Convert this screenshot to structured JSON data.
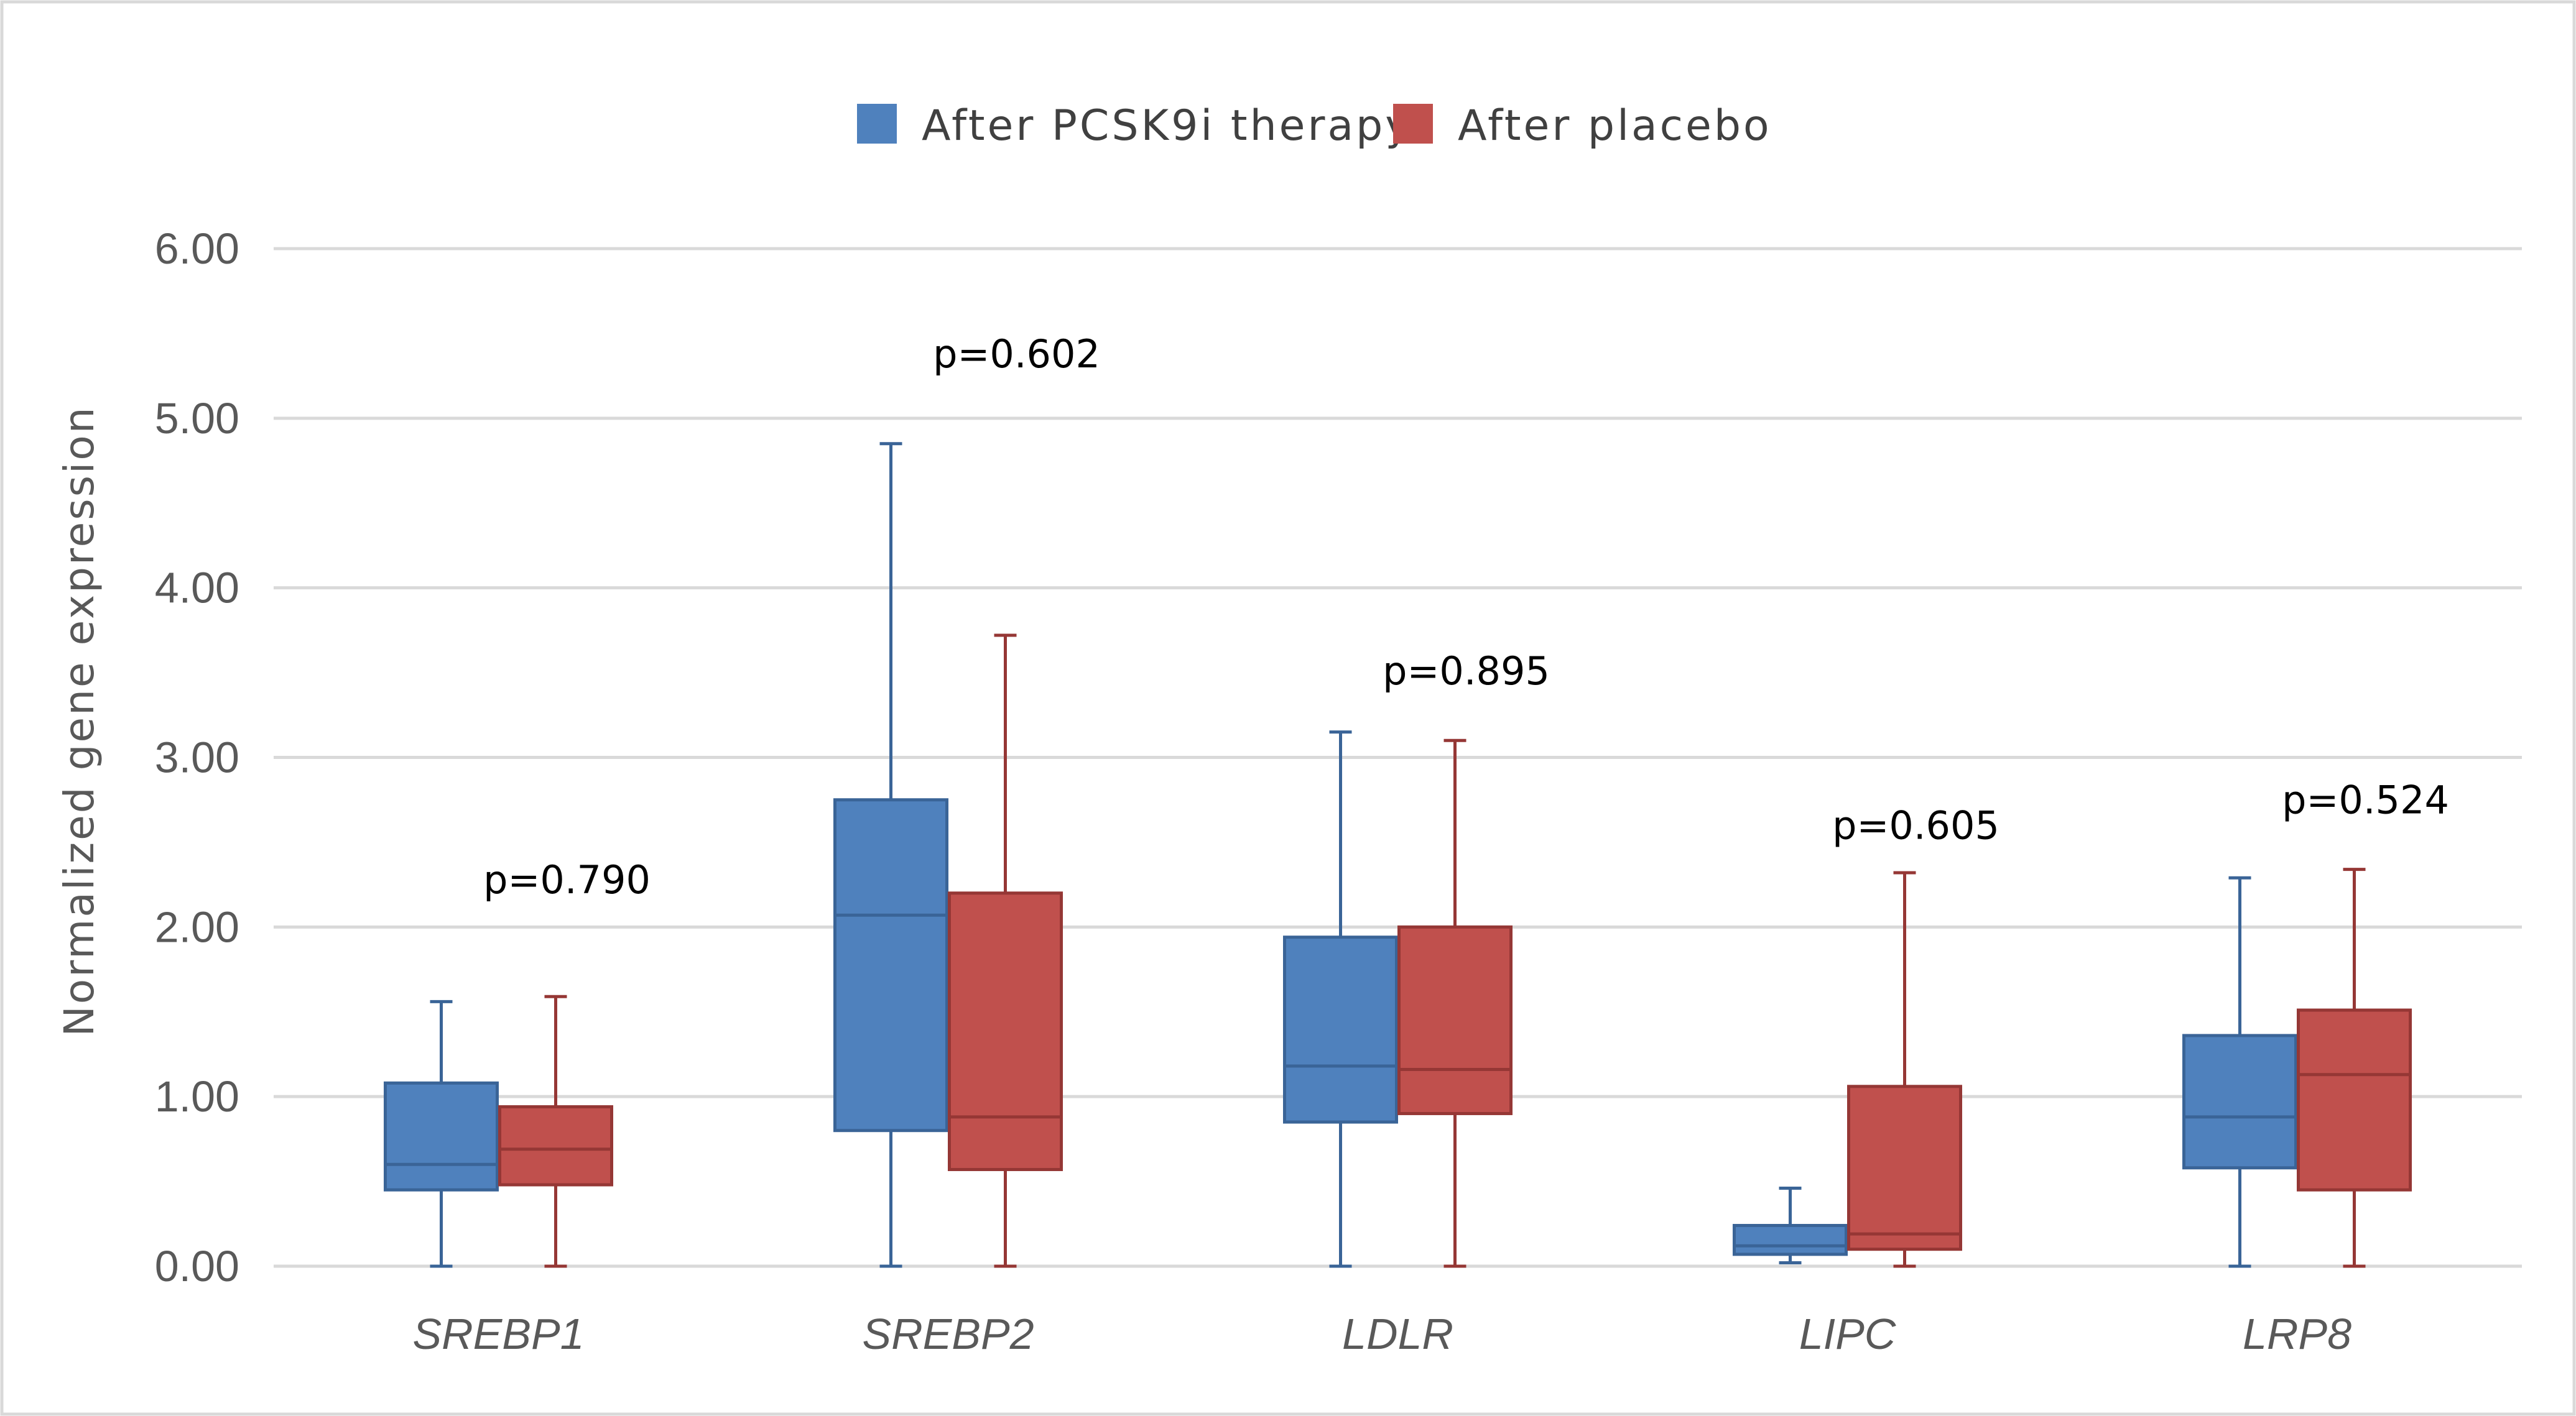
{
  "chart_data": {
    "type": "boxplot",
    "title": "",
    "xlabel": "",
    "ylabel": "Normalized gene expression",
    "ylim": [
      0,
      6
    ],
    "yticks": [
      "0.00",
      "1.00",
      "2.00",
      "3.00",
      "4.00",
      "5.00",
      "6.00"
    ],
    "ytick_values": [
      0,
      1,
      2,
      3,
      4,
      5,
      6
    ],
    "grid": true,
    "legend_position": "top-center",
    "categories": [
      "SREBP1",
      "SREBP2",
      "LDLR",
      "LIPC",
      "LRP8"
    ],
    "series": [
      {
        "name": "After PCSK9i therapy",
        "color": "#4F81BD",
        "edge_color": "#3A6497",
        "boxes": [
          {
            "min": 0.0,
            "q1": 0.45,
            "median": 0.6,
            "q3": 1.08,
            "max": 1.56
          },
          {
            "min": 0.0,
            "q1": 0.8,
            "median": 2.07,
            "q3": 2.75,
            "max": 4.85
          },
          {
            "min": 0.0,
            "q1": 0.85,
            "median": 1.18,
            "q3": 1.94,
            "max": 3.15
          },
          {
            "min": 0.02,
            "q1": 0.07,
            "median": 0.12,
            "q3": 0.24,
            "max": 0.46
          },
          {
            "min": 0.0,
            "q1": 0.58,
            "median": 0.88,
            "q3": 1.36,
            "max": 2.29
          }
        ]
      },
      {
        "name": "After placebo",
        "color": "#C0504D",
        "edge_color": "#953735",
        "boxes": [
          {
            "min": 0.0,
            "q1": 0.48,
            "median": 0.69,
            "q3": 0.94,
            "max": 1.59
          },
          {
            "min": 0.0,
            "q1": 0.57,
            "median": 0.88,
            "q3": 2.2,
            "max": 3.72
          },
          {
            "min": 0.0,
            "q1": 0.9,
            "median": 1.16,
            "q3": 2.0,
            "max": 3.1
          },
          {
            "min": 0.0,
            "q1": 0.1,
            "median": 0.19,
            "q3": 1.06,
            "max": 2.32
          },
          {
            "min": 0.0,
            "q1": 0.45,
            "median": 1.13,
            "q3": 1.51,
            "max": 2.34
          }
        ]
      }
    ],
    "annotations": [
      {
        "category": "SREBP1",
        "text": "p=0.790",
        "y": 2.2
      },
      {
        "category": "SREBP2",
        "text": "p=0.602",
        "y": 5.3
      },
      {
        "category": "LDLR",
        "text": "p=0.895",
        "y": 3.43
      },
      {
        "category": "LIPC",
        "text": "p=0.605",
        "y": 2.52
      },
      {
        "category": "LRP8",
        "text": "p=0.524",
        "y": 2.67
      }
    ]
  },
  "colors": {
    "background": "#FFFFFF",
    "gridline": "#D9D9D9",
    "axis_text": "#595959",
    "frame": "#D9D9D9"
  }
}
